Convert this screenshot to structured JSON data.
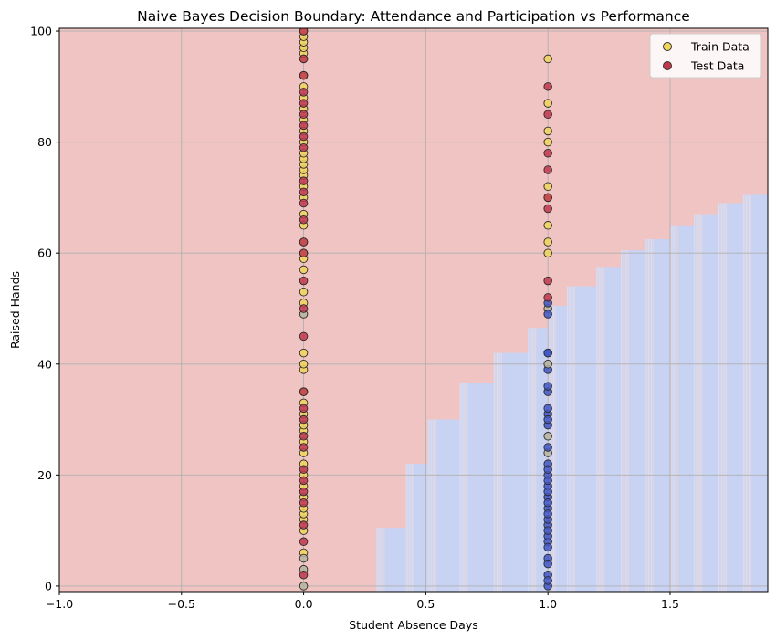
{
  "chart_data": {
    "type": "scatter",
    "title": "Naive Bayes Decision Boundary: Attendance and Participation vs Performance",
    "xlabel": "Student Absence Days",
    "ylabel": "Raised Hands",
    "xlim": [
      -1.0,
      1.9
    ],
    "ylim": [
      -1,
      100.5
    ],
    "xticks": [
      "−1.0",
      "−0.5",
      "0.0",
      "0.5",
      "1.0",
      "1.5"
    ],
    "xtick_values": [
      -1.0,
      -0.5,
      0.0,
      0.5,
      1.0,
      1.5
    ],
    "yticks": [
      "0",
      "20",
      "40",
      "60",
      "80",
      "100"
    ],
    "ytick_values": [
      0,
      20,
      40,
      60,
      80,
      100
    ],
    "grid": true,
    "legend_position": "top-right",
    "colors": {
      "region_high": "#efc4c3",
      "region_low": "#c8d2f3",
      "train": "#f2d55a",
      "test": "#c0374b",
      "low_class": "#3f57c8",
      "mid_class": "#b9b4a0",
      "grid": "#b0b0b0"
    },
    "decision_boundary": {
      "description_x": [
        0.3,
        0.42,
        0.51,
        0.64,
        0.78,
        0.92,
        1.0,
        1.08,
        1.2,
        1.3,
        1.4,
        1.5,
        1.6,
        1.7,
        1.8
      ],
      "boundary_y": [
        10.5,
        22.0,
        30.0,
        36.5,
        42.0,
        46.5,
        50.5,
        54.0,
        57.5,
        60.5,
        62.5,
        65.0,
        67.0,
        69.0,
        70.5
      ]
    },
    "series": [
      {
        "name": "Train Data",
        "x": [
          0,
          0,
          0,
          0,
          0,
          0,
          0,
          0,
          0,
          0,
          0,
          0,
          0,
          0,
          0,
          0,
          0,
          0,
          0,
          0,
          0,
          0,
          0,
          0,
          0,
          0,
          0,
          0,
          0,
          0,
          0,
          0,
          0,
          0,
          0,
          0,
          0,
          0,
          0,
          0,
          0,
          0,
          0,
          0,
          0,
          0,
          0,
          0,
          0,
          0,
          1,
          1,
          1,
          1,
          1,
          1,
          1,
          1,
          1,
          1,
          1,
          1,
          1,
          1,
          1,
          1,
          1,
          1,
          1,
          1,
          1,
          1,
          1,
          1,
          1,
          1,
          1,
          1,
          1,
          1,
          1,
          1
        ],
        "y": [
          0,
          3,
          6,
          10,
          12,
          13,
          14,
          16,
          18,
          20,
          22,
          24,
          26,
          28,
          29,
          31,
          33,
          35,
          39,
          40,
          42,
          49,
          51,
          53,
          57,
          59,
          60,
          62,
          65,
          67,
          70,
          72,
          74,
          75,
          76,
          77,
          78,
          80,
          82,
          84,
          86,
          88,
          90,
          92,
          95,
          96,
          97,
          98,
          99,
          100,
          0,
          2,
          5,
          8,
          9,
          11,
          12,
          14,
          16,
          18,
          20,
          22,
          24,
          25,
          27,
          29,
          31,
          35,
          39,
          40,
          42,
          50,
          51,
          60,
          62,
          65,
          70,
          72,
          80,
          82,
          87,
          95
        ],
        "classes": [
          "m",
          "m",
          "y",
          "y",
          "y",
          "y",
          "y",
          "y",
          "y",
          "y",
          "y",
          "y",
          "y",
          "y",
          "y",
          "y",
          "y",
          "y",
          "y",
          "y",
          "y",
          "m",
          "y",
          "y",
          "y",
          "y",
          "y",
          "y",
          "y",
          "y",
          "y",
          "y",
          "y",
          "y",
          "y",
          "y",
          "y",
          "y",
          "y",
          "y",
          "y",
          "y",
          "y",
          "y",
          "y",
          "y",
          "y",
          "y",
          "y",
          "y",
          "b",
          "b",
          "b",
          "b",
          "b",
          "b",
          "b",
          "b",
          "b",
          "b",
          "b",
          "b",
          "m",
          "b",
          "m",
          "b",
          "b",
          "b",
          "b",
          "m",
          "b",
          "m",
          "b",
          "y",
          "y",
          "y",
          "y",
          "y",
          "y",
          "y",
          "y",
          "y"
        ]
      },
      {
        "name": "Test Data",
        "x": [
          0,
          0,
          0,
          0,
          0,
          0,
          0,
          0,
          0,
          0,
          0,
          0,
          0,
          0,
          0,
          0,
          0,
          0,
          0,
          0,
          0,
          0,
          0,
          0,
          0,
          0,
          0,
          0,
          0,
          0,
          0,
          1,
          1,
          1,
          1,
          1,
          1,
          1,
          1,
          1,
          1,
          1,
          1,
          1,
          1,
          1,
          1,
          1,
          1,
          1,
          1,
          1,
          1
        ],
        "y": [
          2,
          5,
          8,
          11,
          15,
          17,
          19,
          21,
          25,
          27,
          30,
          32,
          35,
          45,
          50,
          55,
          60,
          62,
          66,
          69,
          71,
          73,
          79,
          81,
          83,
          85,
          87,
          89,
          92,
          95,
          100,
          1,
          4,
          7,
          10,
          13,
          15,
          17,
          19,
          21,
          30,
          32,
          36,
          42,
          49,
          52,
          55,
          68,
          70,
          75,
          78,
          85,
          90
        ],
        "classes": [
          "r",
          "m",
          "r",
          "r",
          "r",
          "r",
          "r",
          "r",
          "r",
          "r",
          "r",
          "r",
          "r",
          "r",
          "r",
          "r",
          "r",
          "r",
          "r",
          "r",
          "r",
          "r",
          "r",
          "r",
          "r",
          "r",
          "r",
          "r",
          "r",
          "r",
          "r",
          "b",
          "b",
          "b",
          "b",
          "b",
          "b",
          "b",
          "b",
          "b",
          "b",
          "b",
          "b",
          "b",
          "b",
          "r",
          "r",
          "r",
          "r",
          "r",
          "r",
          "r",
          "r"
        ]
      }
    ]
  }
}
